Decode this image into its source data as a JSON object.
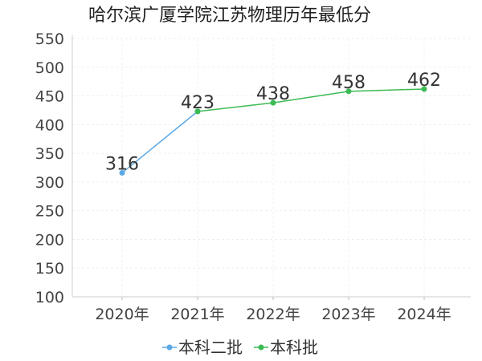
{
  "chart_data": {
    "type": "line",
    "title": "哈尔滨广厦学院江苏物理历年最低分",
    "xlabel": "",
    "ylabel": "",
    "categories": [
      "2020年",
      "2021年",
      "2022年",
      "2023年",
      "2024年"
    ],
    "ylim": [
      100,
      550
    ],
    "yticks": [
      100,
      150,
      200,
      250,
      300,
      350,
      400,
      450,
      500,
      550
    ],
    "grid": true,
    "legend_position": "bottom",
    "series": [
      {
        "name": "本科二批",
        "color": "#5aa9e6",
        "values": [
          316,
          423,
          null,
          null,
          null
        ]
      },
      {
        "name": "本科批",
        "color": "#3cba54",
        "values": [
          null,
          423,
          438,
          458,
          462
        ]
      }
    ],
    "data_labels": [
      {
        "category": "2020年",
        "value": 316,
        "text": "316"
      },
      {
        "category": "2021年",
        "value": 423,
        "text": "423"
      },
      {
        "category": "2022年",
        "value": 438,
        "text": "438"
      },
      {
        "category": "2023年",
        "value": 458,
        "text": "458"
      },
      {
        "category": "2024年",
        "value": 462,
        "text": "462"
      }
    ]
  }
}
